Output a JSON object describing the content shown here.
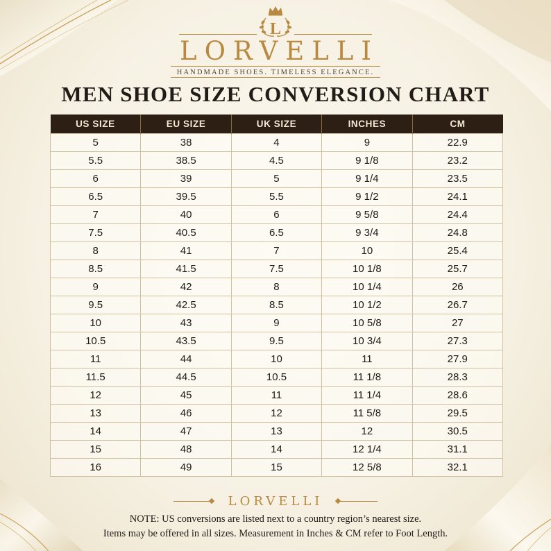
{
  "brand": {
    "name": "LORVELLI",
    "tagline": "HANDMADE SHOES. TIMELESS ELEGANCE.",
    "crest_letter": "L"
  },
  "title": "MEN SHOE SIZE CONVERSION CHART",
  "table": {
    "headers": [
      "US SIZE",
      "EU SIZE",
      "UK SIZE",
      "INCHES",
      "CM"
    ],
    "rows": [
      [
        "5",
        "38",
        "4",
        "9",
        "22.9"
      ],
      [
        "5.5",
        "38.5",
        "4.5",
        "9 1/8",
        "23.2"
      ],
      [
        "6",
        "39",
        "5",
        "9 1/4",
        "23.5"
      ],
      [
        "6.5",
        "39.5",
        "5.5",
        "9 1/2",
        "24.1"
      ],
      [
        "7",
        "40",
        "6",
        "9 5/8",
        "24.4"
      ],
      [
        "7.5",
        "40.5",
        "6.5",
        "9 3/4",
        "24.8"
      ],
      [
        "8",
        "41",
        "7",
        "10",
        "25.4"
      ],
      [
        "8.5",
        "41.5",
        "7.5",
        "10 1/8",
        "25.7"
      ],
      [
        "9",
        "42",
        "8",
        "10 1/4",
        "26"
      ],
      [
        "9.5",
        "42.5",
        "8.5",
        "10 1/2",
        "26.7"
      ],
      [
        "10",
        "43",
        "9",
        "10 5/8",
        "27"
      ],
      [
        "10.5",
        "43.5",
        "9.5",
        "10 3/4",
        "27.3"
      ],
      [
        "11",
        "44",
        "10",
        "11",
        "27.9"
      ],
      [
        "11.5",
        "44.5",
        "10.5",
        "11 1/8",
        "28.3"
      ],
      [
        "12",
        "45",
        "11",
        "11 1/4",
        "28.6"
      ],
      [
        "13",
        "46",
        "12",
        "11 5/8",
        "29.5"
      ],
      [
        "14",
        "47",
        "13",
        "12",
        "30.5"
      ],
      [
        "15",
        "48",
        "14",
        "12 1/4",
        "31.1"
      ],
      [
        "16",
        "49",
        "15",
        "12 5/8",
        "32.1"
      ]
    ]
  },
  "footer": {
    "brand": "LORVELLI",
    "note_line1": "NOTE: US conversions are listed next to a country region’s nearest size.",
    "note_line2": "Items may be offered in all sizes. Measurement in Inches & CM refer to Foot Length."
  },
  "colors": {
    "gold": "#b8893f",
    "header_bg": "#2d1f14",
    "header_text": "#f3ead8",
    "background": "#f6f1e3",
    "grid": "#cdbf9f"
  },
  "icons": [
    "crown-icon",
    "laurel-wreath-icon"
  ]
}
